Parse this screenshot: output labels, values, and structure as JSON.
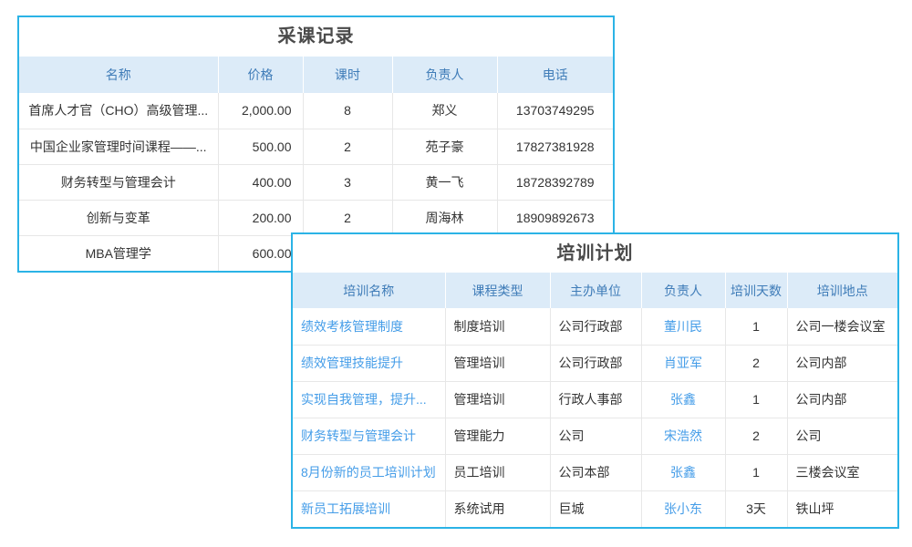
{
  "colors": {
    "card_border": "#2bb3e6",
    "header_background": "#dcebf8",
    "header_text": "#3f7cb8",
    "body_text": "#333333",
    "link_text": "#459de8",
    "title_text": "#4a4a4a"
  },
  "purchase_table": {
    "title": "采课记录",
    "headers": [
      "名称",
      "价格",
      "课时",
      "负责人",
      "电话"
    ],
    "rows": [
      [
        "首席人才官（CHO）高级管理...",
        "2,000.00",
        "8",
        "郑义",
        "13703749295"
      ],
      [
        "中国企业家管理时间课程——...",
        "500.00",
        "2",
        "苑子豪",
        "17827381928"
      ],
      [
        "财务转型与管理会计",
        "400.00",
        "3",
        "黄一飞",
        "18728392789"
      ],
      [
        "创新与变革",
        "200.00",
        "2",
        "周海林",
        "18909892673"
      ],
      [
        "MBA管理学",
        "600.00",
        "",
        "",
        ""
      ]
    ]
  },
  "training_table": {
    "title": "培训计划",
    "headers": [
      "培训名称",
      "课程类型",
      "主办单位",
      "负责人",
      "培训天数",
      "培训地点"
    ],
    "rows": [
      [
        "绩效考核管理制度",
        "制度培训",
        "公司行政部",
        "董川民",
        "1",
        "公司一楼会议室"
      ],
      [
        "绩效管理技能提升",
        "管理培训",
        "公司行政部",
        "肖亚军",
        "2",
        "公司内部"
      ],
      [
        "实现自我管理，提升...",
        "管理培训",
        "行政人事部",
        "张鑫",
        "1",
        "公司内部"
      ],
      [
        "财务转型与管理会计",
        "管理能力",
        "公司",
        "宋浩然",
        "2",
        "公司"
      ],
      [
        "8月份新的员工培训计划",
        "员工培训",
        "公司本部",
        "张鑫",
        "1",
        "三楼会议室"
      ],
      [
        "新员工拓展培训",
        "系统试用",
        "巨城",
        "张小东",
        "3天",
        "铁山坪"
      ]
    ]
  }
}
